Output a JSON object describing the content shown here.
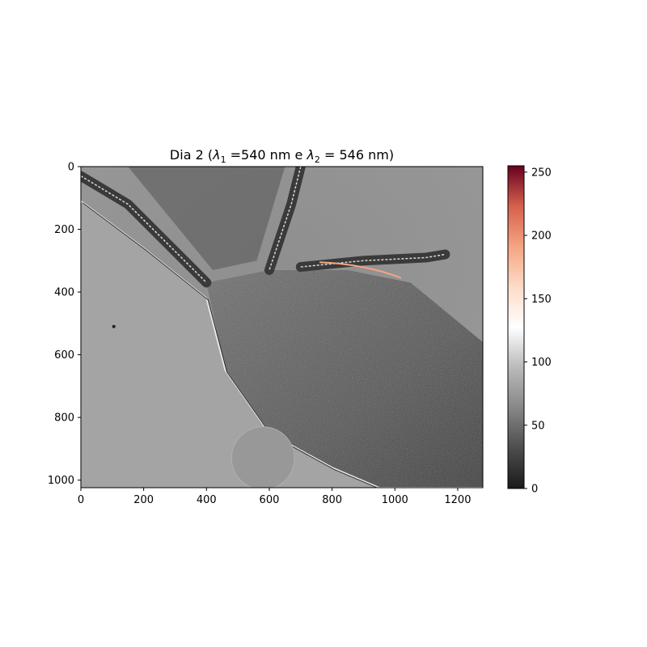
{
  "chart_data": {
    "type": "heatmap",
    "title": "Dia 2 (λ₁ =540 nm e λ₂ = 546 nm)",
    "title_parts": {
      "prefix": "Dia 2 (",
      "lambda1_symbol": "λ",
      "lambda1_sub": "1",
      "lambda1_value": " =540 nm e ",
      "lambda2_symbol": "λ",
      "lambda2_sub": "2",
      "lambda2_value": " = 546 nm)"
    },
    "image_width": 1280,
    "image_height": 1024,
    "xlim": [
      0,
      1280
    ],
    "ylim": [
      1024,
      0
    ],
    "xticks": [
      0,
      200,
      400,
      600,
      800,
      1000,
      1200
    ],
    "yticks": [
      0,
      200,
      400,
      600,
      800,
      1000
    ],
    "colorbar": {
      "colormap": "RdGy_r",
      "range": [
        0,
        255
      ],
      "ticks": [
        0,
        50,
        100,
        150,
        200,
        250
      ]
    },
    "features": [
      {
        "name": "membrane-boundary",
        "type": "curve",
        "x": [
          0,
          200,
          400,
          460,
          600,
          800,
          950,
          1200,
          1280
        ],
        "y": [
          110,
          260,
          420,
          650,
          850,
          960,
          1024,
          1024,
          1024
        ]
      },
      {
        "name": "upper-appendage",
        "type": "curve",
        "x": [
          0,
          150,
          280,
          400
        ],
        "y": [
          30,
          120,
          250,
          370
        ]
      },
      {
        "name": "vertical-appendage",
        "type": "curve",
        "x": [
          700,
          670,
          600
        ],
        "y": [
          0,
          120,
          330
        ]
      },
      {
        "name": "right-appendage",
        "type": "curve",
        "x": [
          700,
          900,
          1100,
          1160
        ],
        "y": [
          320,
          300,
          290,
          280
        ]
      },
      {
        "name": "dark-spot",
        "type": "point",
        "x": 105,
        "y": 510
      },
      {
        "name": "circular-region",
        "type": "disk",
        "x": 580,
        "y": 930,
        "r": 100
      }
    ]
  }
}
